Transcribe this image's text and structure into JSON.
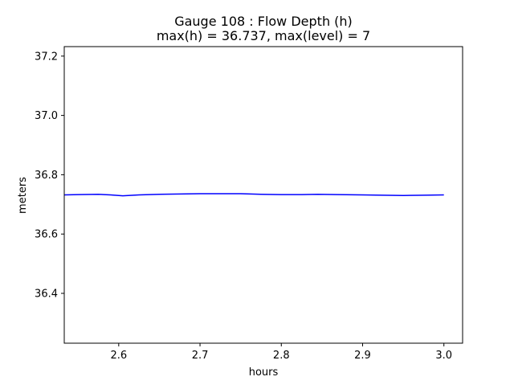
{
  "chart_data": {
    "type": "line",
    "title_line1": "Gauge 108 : Flow Depth (h)",
    "title_line2": "max(h) =  36.737,    max(level) = 7",
    "xlabel": "hours",
    "ylabel": "meters",
    "xlim": [
      2.533,
      3.023
    ],
    "ylim": [
      36.232,
      37.232
    ],
    "x_ticks": [
      2.6,
      2.7,
      2.8,
      2.9,
      3.0
    ],
    "x_tick_labels": [
      "2.6",
      "2.7",
      "2.8",
      "2.9",
      "3.0"
    ],
    "y_ticks": [
      36.4,
      36.6,
      36.8,
      37.0,
      37.2
    ],
    "y_tick_labels": [
      "36.4",
      "36.6",
      "36.8",
      "37.0",
      "37.2"
    ],
    "grid": false,
    "series": [
      {
        "color": "#0000ff",
        "x": [
          2.533,
          2.55,
          2.575,
          2.59,
          2.605,
          2.625,
          2.65,
          2.675,
          2.7,
          2.725,
          2.75,
          2.775,
          2.8,
          2.825,
          2.845,
          2.87,
          2.9,
          2.925,
          2.95,
          2.975,
          3.0
        ],
        "y": [
          36.732,
          36.733,
          36.734,
          36.732,
          36.729,
          36.732,
          36.734,
          36.735,
          36.736,
          36.736,
          36.736,
          36.734,
          36.733,
          36.733,
          36.734,
          36.733,
          36.732,
          36.731,
          36.73,
          36.731,
          36.732
        ]
      }
    ]
  }
}
